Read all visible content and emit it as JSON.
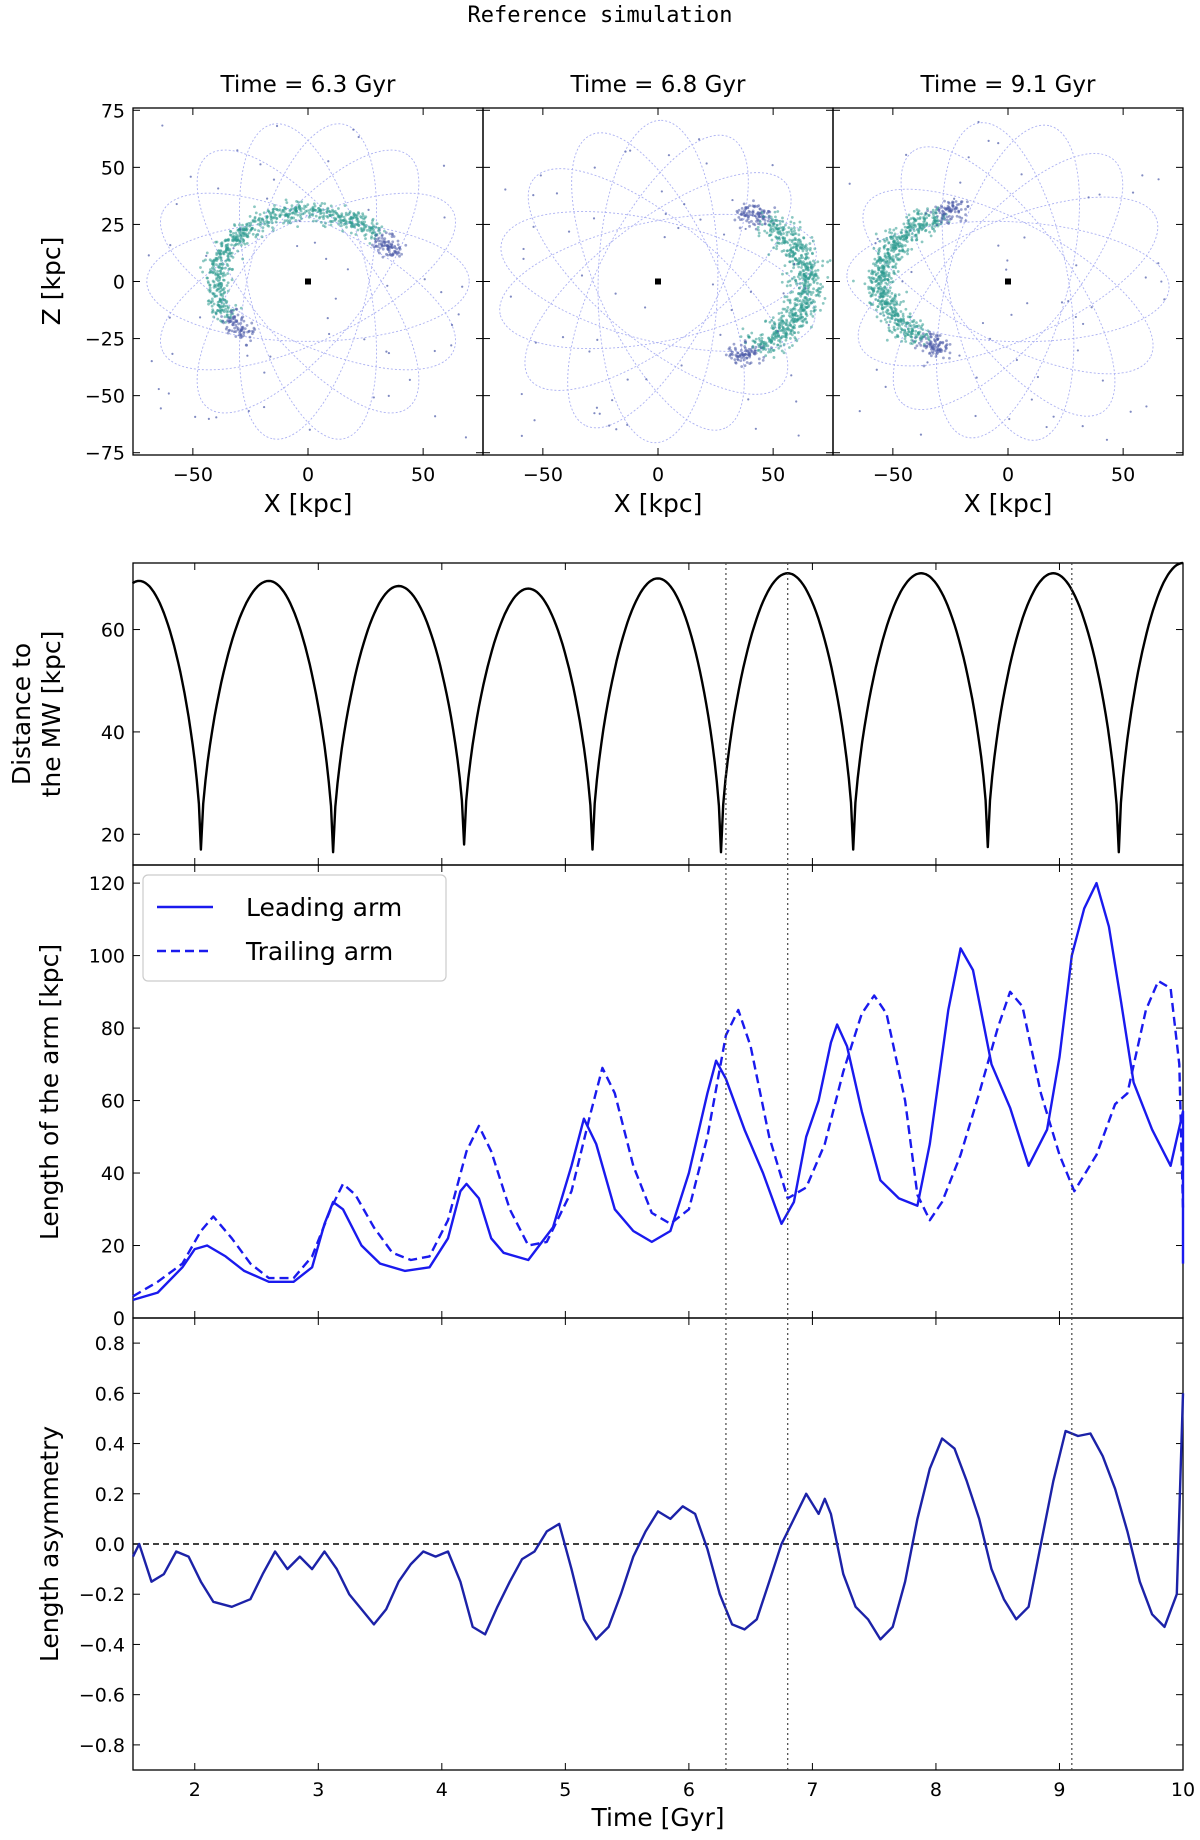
{
  "figure_title": "Reference simulation",
  "colors": {
    "orbit": "#8f96ee",
    "stream_dense": "#2e9b8f",
    "stream_sparse": "#4b5aa8",
    "distance_line": "#000000",
    "arm_line": "#1a1aee",
    "asym_line": "#1c22a8"
  },
  "top_panels": {
    "xlabel": "X [kpc]",
    "ylabel": "Z [kpc]",
    "xticks": [
      -50,
      0,
      50
    ],
    "yticks": [
      75,
      50,
      25,
      0,
      -25,
      -50,
      -75
    ],
    "panels": [
      {
        "title": "Time = 6.3 Gyr"
      },
      {
        "title": "Time = 6.8 Gyr"
      },
      {
        "title": "Time = 9.1 Gyr"
      }
    ]
  },
  "chart_data": [
    {
      "type": "scatter",
      "title": "Time = 6.3 Gyr",
      "xlabel": "X [kpc]",
      "ylabel": "Z [kpc]",
      "xlim": [
        -76,
        76
      ],
      "ylim": [
        -76,
        76
      ],
      "stream": {
        "center": [
          0,
          0
        ],
        "radius": 40,
        "arc_start_deg": 20,
        "arc_end_deg": 230,
        "z_scale": 0.55
      }
    },
    {
      "type": "scatter",
      "title": "Time = 6.8 Gyr",
      "xlabel": "X [kpc]",
      "ylabel": "Z [kpc]",
      "xlim": [
        -76,
        76
      ],
      "ylim": [
        -76,
        76
      ],
      "stream": {
        "center": [
          0,
          0
        ],
        "radius": 65,
        "arc_start_deg": -60,
        "arc_end_deg": 55,
        "z_scale": 0.38
      }
    },
    {
      "type": "scatter",
      "title": "Time = 9.1 Gyr",
      "xlabel": "X [kpc]",
      "ylabel": "Z [kpc]",
      "xlim": [
        -76,
        76
      ],
      "ylim": [
        -76,
        76
      ],
      "stream": {
        "center": [
          0,
          0
        ],
        "radius": 55,
        "arc_start_deg": 110,
        "arc_end_deg": 240,
        "z_scale": 0.45
      }
    },
    {
      "type": "line",
      "ylabel": "Distance to the MW [kpc]",
      "ylabel_lines": [
        "Distance to",
        "the MW [kpc]"
      ],
      "xlim": [
        1.5,
        10
      ],
      "ylim": [
        14,
        73
      ],
      "yticks": [
        20,
        40,
        60
      ],
      "series": [
        {
          "name": "Distance",
          "x": [
            1.5,
            2.05,
            3.12,
            4.18,
            5.22,
            6.26,
            7.33,
            8.42,
            9.48,
            10.0
          ],
          "extrema": [
            {
              "x": 1.5,
              "y": 69
            },
            {
              "x": 1.55,
              "y": 69.5
            },
            {
              "x": 2.05,
              "y": 17
            },
            {
              "x": 2.6,
              "y": 69.5
            },
            {
              "x": 3.12,
              "y": 16.5
            },
            {
              "x": 3.65,
              "y": 68.5
            },
            {
              "x": 4.18,
              "y": 18
            },
            {
              "x": 4.7,
              "y": 68
            },
            {
              "x": 5.22,
              "y": 17
            },
            {
              "x": 5.75,
              "y": 70
            },
            {
              "x": 6.26,
              "y": 16.5
            },
            {
              "x": 6.8,
              "y": 71
            },
            {
              "x": 7.33,
              "y": 17
            },
            {
              "x": 7.88,
              "y": 71
            },
            {
              "x": 8.42,
              "y": 17.5
            },
            {
              "x": 8.95,
              "y": 71
            },
            {
              "x": 9.48,
              "y": 16.5
            },
            {
              "x": 10.0,
              "y": 73
            }
          ]
        }
      ]
    },
    {
      "type": "line",
      "ylabel": "Length of the arm [kpc]",
      "xlim": [
        1.5,
        10
      ],
      "ylim": [
        0,
        125
      ],
      "yticks": [
        0,
        20,
        40,
        60,
        80,
        100,
        120
      ],
      "legend": {
        "placement": "top-left",
        "entries": [
          "Leading arm",
          "Trailing arm"
        ]
      },
      "series": [
        {
          "name": "Leading arm",
          "style": "solid",
          "points": [
            [
              1.5,
              5
            ],
            [
              1.7,
              7
            ],
            [
              1.9,
              14
            ],
            [
              2.0,
              19
            ],
            [
              2.1,
              20
            ],
            [
              2.25,
              17
            ],
            [
              2.4,
              13
            ],
            [
              2.6,
              10
            ],
            [
              2.8,
              10
            ],
            [
              2.95,
              14
            ],
            [
              3.05,
              26
            ],
            [
              3.12,
              32
            ],
            [
              3.2,
              30
            ],
            [
              3.35,
              20
            ],
            [
              3.5,
              15
            ],
            [
              3.7,
              13
            ],
            [
              3.9,
              14
            ],
            [
              4.05,
              22
            ],
            [
              4.15,
              35
            ],
            [
              4.2,
              37
            ],
            [
              4.3,
              33
            ],
            [
              4.4,
              22
            ],
            [
              4.5,
              18
            ],
            [
              4.7,
              16
            ],
            [
              4.9,
              25
            ],
            [
              5.05,
              42
            ],
            [
              5.15,
              55
            ],
            [
              5.25,
              48
            ],
            [
              5.4,
              30
            ],
            [
              5.55,
              24
            ],
            [
              5.7,
              21
            ],
            [
              5.85,
              24
            ],
            [
              6.0,
              40
            ],
            [
              6.15,
              62
            ],
            [
              6.22,
              71
            ],
            [
              6.3,
              66
            ],
            [
              6.45,
              52
            ],
            [
              6.6,
              40
            ],
            [
              6.75,
              26
            ],
            [
              6.85,
              32
            ],
            [
              6.95,
              50
            ],
            [
              7.05,
              60
            ],
            [
              7.15,
              76
            ],
            [
              7.2,
              81
            ],
            [
              7.28,
              75
            ],
            [
              7.4,
              57
            ],
            [
              7.55,
              38
            ],
            [
              7.7,
              33
            ],
            [
              7.85,
              31
            ],
            [
              7.95,
              48
            ],
            [
              8.1,
              85
            ],
            [
              8.2,
              102
            ],
            [
              8.3,
              96
            ],
            [
              8.45,
              70
            ],
            [
              8.6,
              58
            ],
            [
              8.75,
              42
            ],
            [
              8.9,
              52
            ],
            [
              9.0,
              72
            ],
            [
              9.1,
              100
            ],
            [
              9.2,
              113
            ],
            [
              9.3,
              120
            ],
            [
              9.4,
              108
            ],
            [
              9.5,
              87
            ],
            [
              9.6,
              65
            ],
            [
              9.75,
              52
            ],
            [
              9.9,
              42
            ],
            [
              10.0,
              57
            ],
            [
              10.0,
              15
            ]
          ]
        },
        {
          "name": "Trailing arm",
          "style": "dashed",
          "points": [
            [
              1.5,
              6
            ],
            [
              1.7,
              10
            ],
            [
              1.9,
              15
            ],
            [
              2.05,
              24
            ],
            [
              2.15,
              28
            ],
            [
              2.3,
              22
            ],
            [
              2.45,
              15
            ],
            [
              2.6,
              11
            ],
            [
              2.8,
              11
            ],
            [
              2.95,
              17
            ],
            [
              3.1,
              30
            ],
            [
              3.2,
              37
            ],
            [
              3.3,
              34
            ],
            [
              3.45,
              25
            ],
            [
              3.6,
              18
            ],
            [
              3.75,
              16
            ],
            [
              3.9,
              17
            ],
            [
              4.05,
              27
            ],
            [
              4.2,
              46
            ],
            [
              4.3,
              53
            ],
            [
              4.4,
              46
            ],
            [
              4.55,
              30
            ],
            [
              4.7,
              20
            ],
            [
              4.85,
              21
            ],
            [
              5.05,
              35
            ],
            [
              5.2,
              56
            ],
            [
              5.3,
              69
            ],
            [
              5.4,
              62
            ],
            [
              5.55,
              42
            ],
            [
              5.7,
              29
            ],
            [
              5.85,
              26
            ],
            [
              6.0,
              30
            ],
            [
              6.15,
              50
            ],
            [
              6.3,
              78
            ],
            [
              6.4,
              85
            ],
            [
              6.5,
              75
            ],
            [
              6.65,
              50
            ],
            [
              6.8,
              33
            ],
            [
              6.95,
              36
            ],
            [
              7.1,
              48
            ],
            [
              7.25,
              68
            ],
            [
              7.4,
              84
            ],
            [
              7.5,
              89
            ],
            [
              7.6,
              84
            ],
            [
              7.75,
              60
            ],
            [
              7.85,
              34
            ],
            [
              7.95,
              27
            ],
            [
              8.05,
              32
            ],
            [
              8.2,
              45
            ],
            [
              8.35,
              62
            ],
            [
              8.5,
              80
            ],
            [
              8.6,
              90
            ],
            [
              8.7,
              86
            ],
            [
              8.85,
              62
            ],
            [
              9.0,
              45
            ],
            [
              9.12,
              35
            ],
            [
              9.3,
              45
            ],
            [
              9.45,
              59
            ],
            [
              9.55,
              62
            ],
            [
              9.7,
              85
            ],
            [
              9.8,
              93
            ],
            [
              9.9,
              91
            ],
            [
              9.97,
              70
            ],
            [
              10.0,
              30
            ]
          ]
        }
      ]
    },
    {
      "type": "line",
      "ylabel": "Length asymmetry",
      "xlabel": "Time [Gyr]",
      "xlim": [
        1.5,
        10
      ],
      "ylim": [
        -0.9,
        0.9
      ],
      "yticks": [
        0.8,
        0.6,
        0.4,
        0.2,
        0.0,
        -0.2,
        -0.4,
        -0.6,
        -0.8
      ],
      "xticks": [
        2,
        3,
        4,
        5,
        6,
        7,
        8,
        9,
        10
      ],
      "reference_line": 0.0,
      "series": [
        {
          "name": "Asymmetry",
          "style": "solid",
          "points": [
            [
              1.5,
              -0.05
            ],
            [
              1.55,
              -0.0
            ],
            [
              1.65,
              -0.15
            ],
            [
              1.75,
              -0.12
            ],
            [
              1.85,
              -0.03
            ],
            [
              1.95,
              -0.05
            ],
            [
              2.05,
              -0.15
            ],
            [
              2.15,
              -0.23
            ],
            [
              2.3,
              -0.25
            ],
            [
              2.45,
              -0.22
            ],
            [
              2.55,
              -0.12
            ],
            [
              2.65,
              -0.03
            ],
            [
              2.75,
              -0.1
            ],
            [
              2.85,
              -0.05
            ],
            [
              2.95,
              -0.1
            ],
            [
              3.05,
              -0.03
            ],
            [
              3.15,
              -0.1
            ],
            [
              3.25,
              -0.2
            ],
            [
              3.35,
              -0.26
            ],
            [
              3.45,
              -0.32
            ],
            [
              3.55,
              -0.26
            ],
            [
              3.65,
              -0.15
            ],
            [
              3.75,
              -0.08
            ],
            [
              3.85,
              -0.03
            ],
            [
              3.95,
              -0.05
            ],
            [
              4.05,
              -0.03
            ],
            [
              4.15,
              -0.15
            ],
            [
              4.25,
              -0.33
            ],
            [
              4.35,
              -0.36
            ],
            [
              4.45,
              -0.25
            ],
            [
              4.55,
              -0.15
            ],
            [
              4.65,
              -0.06
            ],
            [
              4.75,
              -0.03
            ],
            [
              4.85,
              0.05
            ],
            [
              4.95,
              0.08
            ],
            [
              5.05,
              -0.1
            ],
            [
              5.15,
              -0.3
            ],
            [
              5.25,
              -0.38
            ],
            [
              5.35,
              -0.33
            ],
            [
              5.45,
              -0.2
            ],
            [
              5.55,
              -0.05
            ],
            [
              5.65,
              0.05
            ],
            [
              5.75,
              0.13
            ],
            [
              5.85,
              0.1
            ],
            [
              5.95,
              0.15
            ],
            [
              6.05,
              0.12
            ],
            [
              6.15,
              -0.02
            ],
            [
              6.25,
              -0.2
            ],
            [
              6.35,
              -0.32
            ],
            [
              6.45,
              -0.34
            ],
            [
              6.55,
              -0.3
            ],
            [
              6.65,
              -0.15
            ],
            [
              6.75,
              0.0
            ],
            [
              6.85,
              0.1
            ],
            [
              6.95,
              0.2
            ],
            [
              7.05,
              0.12
            ],
            [
              7.1,
              0.18
            ],
            [
              7.15,
              0.12
            ],
            [
              7.25,
              -0.12
            ],
            [
              7.35,
              -0.25
            ],
            [
              7.45,
              -0.3
            ],
            [
              7.55,
              -0.38
            ],
            [
              7.65,
              -0.33
            ],
            [
              7.75,
              -0.15
            ],
            [
              7.85,
              0.1
            ],
            [
              7.95,
              0.3
            ],
            [
              8.05,
              0.42
            ],
            [
              8.15,
              0.38
            ],
            [
              8.25,
              0.25
            ],
            [
              8.35,
              0.1
            ],
            [
              8.45,
              -0.1
            ],
            [
              8.55,
              -0.22
            ],
            [
              8.65,
              -0.3
            ],
            [
              8.75,
              -0.25
            ],
            [
              8.85,
              0.0
            ],
            [
              8.95,
              0.25
            ],
            [
              9.05,
              0.45
            ],
            [
              9.15,
              0.43
            ],
            [
              9.25,
              0.44
            ],
            [
              9.35,
              0.35
            ],
            [
              9.45,
              0.22
            ],
            [
              9.55,
              0.05
            ],
            [
              9.65,
              -0.15
            ],
            [
              9.75,
              -0.28
            ],
            [
              9.85,
              -0.33
            ],
            [
              9.95,
              -0.2
            ],
            [
              10.0,
              0.6
            ]
          ]
        }
      ]
    }
  ],
  "vertical_markers": [
    6.3,
    6.8,
    9.1
  ]
}
